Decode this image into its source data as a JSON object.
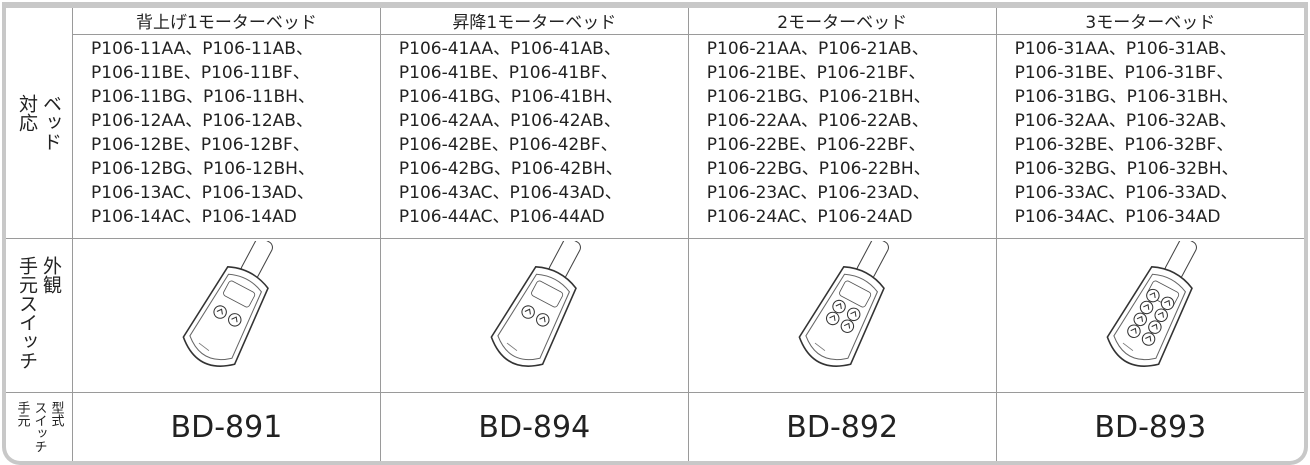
{
  "row_labels": [
    [
      "対応",
      "ベッド"
    ],
    [
      "手元スイッチ",
      "外観"
    ],
    [
      "手元",
      "スイッチ",
      "型式"
    ]
  ],
  "columns": [
    {
      "header": "背上げ1モーターベッド",
      "models": [
        "P106-11AA、P106-11AB、",
        "P106-11BE、P106-11BF、",
        "P106-11BG、P106-11BH、",
        "P106-12AA、P106-12AB、",
        "P106-12BE、P106-12BF、",
        "P106-12BG、P106-12BH、",
        "P106-13AC、P106-13AD、",
        "P106-14AC、P106-14AD"
      ],
      "code": "BD-891"
    },
    {
      "header": "昇降1モーターベッド",
      "models": [
        "P106-41AA、P106-41AB、",
        "P106-41BE、P106-41BF、",
        "P106-41BG、P106-41BH、",
        "P106-42AA、P106-42AB、",
        "P106-42BE、P106-42BF、",
        "P106-42BG、P106-42BH、",
        "P106-43AC、P106-43AD、",
        "P106-44AC、P106-44AD"
      ],
      "code": "BD-894"
    },
    {
      "header": "2モーターベッド",
      "models": [
        "P106-21AA、P106-21AB、",
        "P106-21BE、P106-21BF、",
        "P106-21BG、P106-21BH、",
        "P106-22AA、P106-22AB、",
        "P106-22BE、P106-22BF、",
        "P106-22BG、P106-22BH、",
        "P106-23AC、P106-23AD、",
        "P106-24AC、P106-24AD"
      ],
      "code": "BD-892"
    },
    {
      "header": "3モーターベッド",
      "models": [
        "P106-31AA、P106-31AB、",
        "P106-31BE、P106-31BF、",
        "P106-31BG、P106-31BH、",
        "P106-32AA、P106-32AB、",
        "P106-32BE、P106-32BF、",
        "P106-32BG、P106-32BH、",
        "P106-33AC、P106-33AD、",
        "P106-34AC、P106-34AD"
      ],
      "code": "BD-893"
    }
  ]
}
